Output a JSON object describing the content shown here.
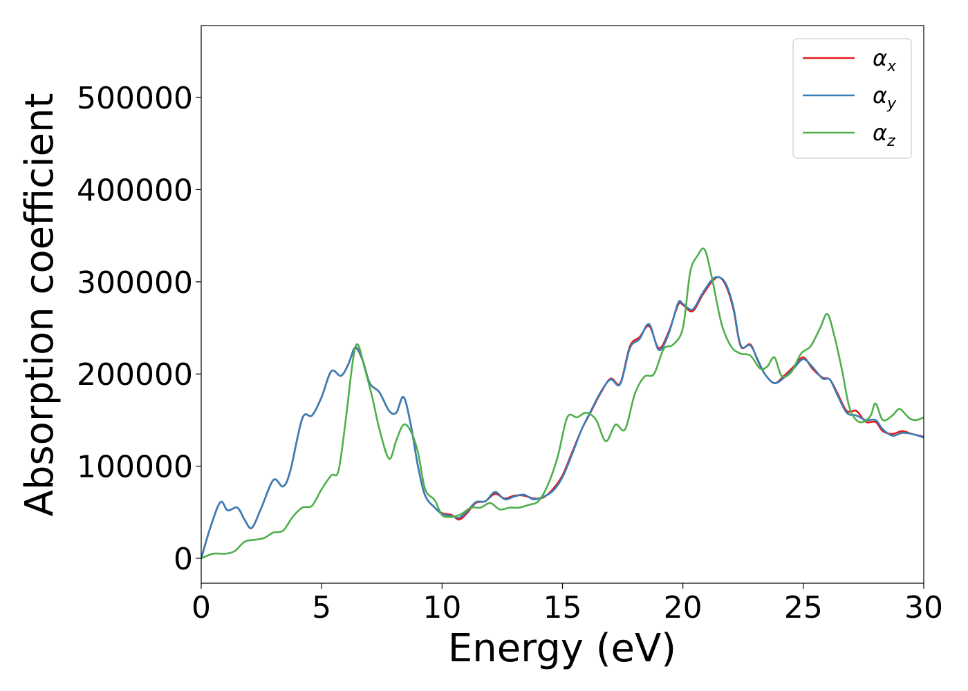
{
  "chart_data": {
    "type": "line",
    "xlabel": "Energy (eV)",
    "ylabel": "Absorption coefficient",
    "xlim": [
      0,
      30
    ],
    "ylim": [
      -27000,
      578000
    ],
    "xticks": [
      "0",
      "5",
      "10",
      "15",
      "20",
      "25",
      "30"
    ],
    "yticks": [
      "0",
      "100000",
      "200000",
      "300000",
      "400000",
      "500000"
    ],
    "grid": false,
    "legend_position": "top-right",
    "series": [
      {
        "name": "α",
        "subscript": "x",
        "color": "#e41a1c",
        "x": [
          0,
          0.4,
          0.8,
          1.1,
          1.5,
          1.8,
          2.1,
          2.5,
          3.0,
          3.4,
          3.7,
          4.2,
          4.6,
          5.0,
          5.4,
          5.8,
          6.1,
          6.4,
          6.7,
          7.0,
          7.4,
          7.8,
          8.1,
          8.4,
          8.7,
          9.0,
          9.3,
          9.7,
          10.0,
          10.4,
          10.7,
          11.0,
          11.4,
          11.8,
          12.2,
          12.6,
          13.0,
          13.4,
          13.8,
          14.2,
          14.6,
          15.0,
          15.4,
          15.8,
          16.2,
          16.6,
          17.0,
          17.4,
          17.8,
          18.2,
          18.6,
          19.0,
          19.4,
          19.8,
          20.0,
          20.4,
          20.8,
          21.2,
          21.5,
          21.8,
          22.1,
          22.4,
          22.8,
          23.1,
          23.4,
          23.8,
          24.2,
          24.6,
          25.0,
          25.4,
          25.8,
          26.1,
          26.4,
          26.8,
          27.2,
          27.6,
          28.0,
          28.3,
          28.7,
          29.1,
          29.5,
          30.0
        ],
        "y": [
          0,
          35000,
          61000,
          52000,
          55000,
          42000,
          33000,
          55000,
          85000,
          78000,
          95000,
          152000,
          155000,
          175000,
          203000,
          198000,
          210000,
          228000,
          215000,
          190000,
          180000,
          160000,
          158000,
          175000,
          145000,
          100000,
          68000,
          55000,
          49000,
          47000,
          42000,
          48000,
          60000,
          62000,
          70000,
          65000,
          68000,
          68000,
          65000,
          66000,
          75000,
          90000,
          115000,
          140000,
          160000,
          180000,
          195000,
          190000,
          230000,
          240000,
          252000,
          228000,
          245000,
          275000,
          275000,
          268000,
          285000,
          300000,
          305000,
          295000,
          270000,
          230000,
          232000,
          215000,
          200000,
          190000,
          198000,
          208000,
          218000,
          205000,
          196000,
          194000,
          180000,
          160000,
          160000,
          148000,
          148000,
          138000,
          135000,
          138000,
          135000,
          132000
        ]
      },
      {
        "name": "α",
        "subscript": "y",
        "color": "#377eb8",
        "x": [
          0,
          0.4,
          0.8,
          1.1,
          1.5,
          1.8,
          2.1,
          2.5,
          3.0,
          3.4,
          3.7,
          4.2,
          4.6,
          5.0,
          5.4,
          5.8,
          6.1,
          6.4,
          6.7,
          7.0,
          7.4,
          7.8,
          8.1,
          8.4,
          8.7,
          9.0,
          9.3,
          9.7,
          10.0,
          10.4,
          10.7,
          11.0,
          11.4,
          11.8,
          12.2,
          12.6,
          13.0,
          13.4,
          13.8,
          14.2,
          14.6,
          15.0,
          15.4,
          15.8,
          16.2,
          16.6,
          17.0,
          17.4,
          17.8,
          18.2,
          18.6,
          19.0,
          19.4,
          19.8,
          20.0,
          20.4,
          20.8,
          21.2,
          21.5,
          21.8,
          22.1,
          22.4,
          22.8,
          23.1,
          23.4,
          23.8,
          24.2,
          24.6,
          25.0,
          25.4,
          25.8,
          26.1,
          26.4,
          26.8,
          27.2,
          27.6,
          28.0,
          28.3,
          28.7,
          29.1,
          29.5,
          30.0
        ],
        "y": [
          0,
          35000,
          61000,
          52000,
          55000,
          42000,
          33000,
          55000,
          85000,
          78000,
          95000,
          152000,
          155000,
          175000,
          203000,
          198000,
          210000,
          229000,
          215000,
          190000,
          180000,
          160000,
          158000,
          175000,
          145000,
          100000,
          68000,
          55000,
          48000,
          46000,
          44000,
          50000,
          61000,
          62000,
          72000,
          64000,
          67000,
          69000,
          64000,
          67000,
          73000,
          88000,
          113000,
          140000,
          161000,
          181000,
          194000,
          189000,
          228000,
          238000,
          254000,
          226000,
          243000,
          277000,
          276000,
          270000,
          287000,
          302000,
          305000,
          297000,
          272000,
          231000,
          231000,
          216000,
          200000,
          190000,
          196000,
          206000,
          216000,
          207000,
          195000,
          194000,
          178000,
          158000,
          155000,
          150000,
          150000,
          140000,
          133000,
          136000,
          135000,
          131000
        ]
      },
      {
        "name": "α",
        "subscript": "z",
        "color": "#4daf4a",
        "x": [
          0,
          0.5,
          1.0,
          1.4,
          1.8,
          2.2,
          2.6,
          3.0,
          3.4,
          3.8,
          4.2,
          4.6,
          5.0,
          5.4,
          5.7,
          6.0,
          6.3,
          6.5,
          6.8,
          7.1,
          7.4,
          7.8,
          8.1,
          8.4,
          8.7,
          9.0,
          9.3,
          9.7,
          10.0,
          10.4,
          10.8,
          11.2,
          11.6,
          12.0,
          12.4,
          12.8,
          13.2,
          13.6,
          14.0,
          14.4,
          14.8,
          15.2,
          15.6,
          16.0,
          16.4,
          16.8,
          17.2,
          17.6,
          18.0,
          18.4,
          18.8,
          19.2,
          19.6,
          20.0,
          20.3,
          20.6,
          20.9,
          21.2,
          21.6,
          22.0,
          22.4,
          22.8,
          23.2,
          23.5,
          23.8,
          24.1,
          24.5,
          24.9,
          25.3,
          25.7,
          26.0,
          26.3,
          26.6,
          26.9,
          27.2,
          27.5,
          27.8,
          28.0,
          28.3,
          28.7,
          29.0,
          29.4,
          29.7,
          30.0
        ],
        "y": [
          0,
          5000,
          5000,
          8000,
          18000,
          20000,
          22000,
          28000,
          30000,
          45000,
          55000,
          57000,
          75000,
          90000,
          95000,
          150000,
          215000,
          232000,
          205000,
          175000,
          140000,
          108000,
          128000,
          145000,
          138000,
          115000,
          75000,
          63000,
          47000,
          45000,
          48000,
          55000,
          55000,
          60000,
          53000,
          55000,
          55000,
          58000,
          62000,
          80000,
          110000,
          153000,
          153000,
          158000,
          150000,
          127000,
          145000,
          140000,
          178000,
          197000,
          200000,
          227000,
          232000,
          250000,
          310000,
          328000,
          335000,
          305000,
          255000,
          230000,
          222000,
          220000,
          206000,
          208000,
          218000,
          198000,
          202000,
          222000,
          230000,
          250000,
          265000,
          240000,
          205000,
          165000,
          150000,
          148000,
          155000,
          168000,
          150000,
          155000,
          162000,
          152000,
          150000,
          153000
        ]
      }
    ]
  }
}
